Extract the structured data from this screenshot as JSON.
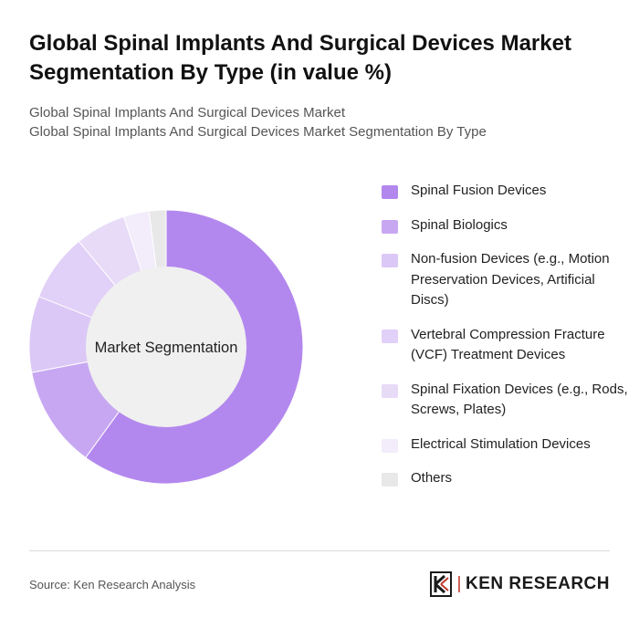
{
  "header": {
    "title": "Global Spinal Implants And Surgical Devices Market Segmentation By Type (in value %)",
    "subtitle_1": "Global Spinal Implants And Surgical Devices Market",
    "subtitle_2": "Global Spinal Implants And Surgical Devices Market Segmentation By Type"
  },
  "footer": {
    "source": "Source: Ken Research Analysis",
    "logo_text": "KEN RESEARCH"
  },
  "chart_data": {
    "type": "pie",
    "center_label": "Market Segmentation",
    "categories": [
      "Spinal Fusion Devices",
      "Spinal Biologics",
      "Non-fusion Devices (e.g., Motion Preservation Devices, Artificial Discs)",
      "Vertebral Compression Fracture (VCF) Treatment Devices",
      "Spinal Fixation Devices (e.g., Rods, Screws, Plates)",
      "Electrical Stimulation Devices",
      "Others"
    ],
    "values": [
      60,
      12,
      9,
      8,
      6,
      3,
      2
    ],
    "colors": [
      "#b388ee",
      "#c8a7f2",
      "#dcc8f6",
      "#e1d0f7",
      "#e7dbf8",
      "#f2ecfb",
      "#e8e8e8"
    ],
    "legend_position": "right"
  }
}
